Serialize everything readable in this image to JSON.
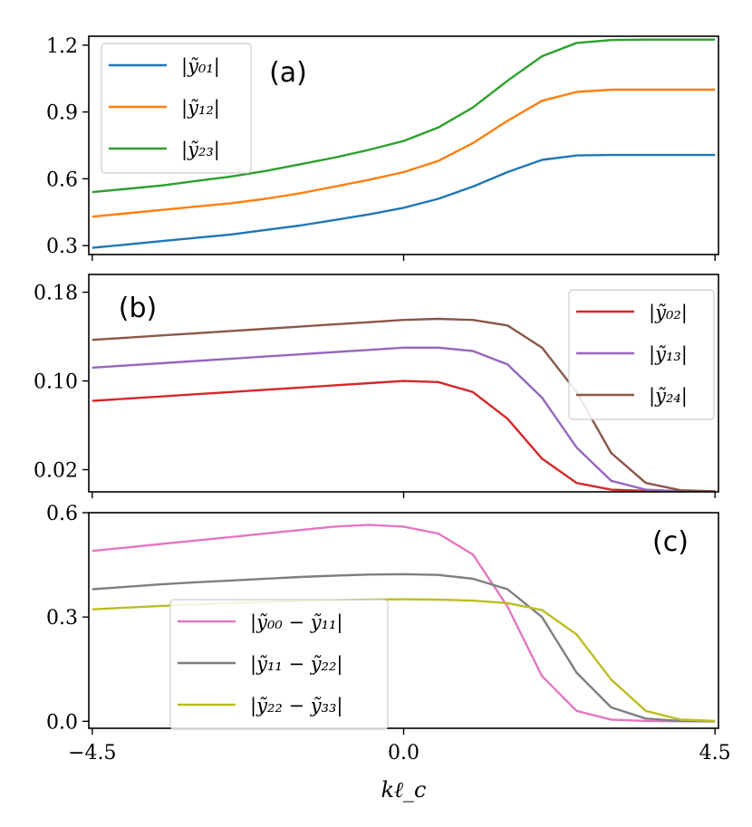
{
  "chart_data": [
    {
      "type": "line",
      "panel_label": "(a)",
      "xlim": [
        -4.55,
        4.55
      ],
      "ylim": [
        0.26,
        1.24
      ],
      "yticks": [
        0.3,
        0.6,
        0.9,
        1.2
      ],
      "ytick_labels": [
        "0.3",
        "0.6",
        "0.9",
        "1.2"
      ],
      "xticks": [
        -4.5,
        0.0,
        4.5
      ],
      "x": [
        -4.5,
        -4.0,
        -3.5,
        -3.0,
        -2.5,
        -2.0,
        -1.5,
        -1.0,
        -0.5,
        0.0,
        0.5,
        1.0,
        1.5,
        2.0,
        2.5,
        3.0,
        3.5,
        4.0,
        4.5
      ],
      "series": [
        {
          "name": "|ỹ₀₁|",
          "color": "#1f77b4",
          "values": [
            0.29,
            0.305,
            0.32,
            0.335,
            0.35,
            0.37,
            0.39,
            0.415,
            0.44,
            0.47,
            0.51,
            0.565,
            0.63,
            0.685,
            0.705,
            0.707,
            0.707,
            0.707,
            0.707
          ]
        },
        {
          "name": "|ỹ₁₂|",
          "color": "#ff7f0e",
          "values": [
            0.43,
            0.445,
            0.46,
            0.475,
            0.49,
            0.51,
            0.535,
            0.565,
            0.595,
            0.63,
            0.68,
            0.76,
            0.86,
            0.95,
            0.99,
            1.0,
            1.0,
            1.0,
            1.0
          ]
        },
        {
          "name": "|ỹ₂₃|",
          "color": "#2ca02c",
          "values": [
            0.54,
            0.555,
            0.57,
            0.59,
            0.61,
            0.635,
            0.665,
            0.695,
            0.73,
            0.77,
            0.83,
            0.92,
            1.04,
            1.15,
            1.21,
            1.223,
            1.225,
            1.225,
            1.225
          ]
        }
      ],
      "legend_position": "upper-left"
    },
    {
      "type": "line",
      "panel_label": "(b)",
      "xlim": [
        -4.55,
        4.55
      ],
      "ylim": [
        0.0,
        0.196
      ],
      "yticks": [
        0.02,
        0.1,
        0.18
      ],
      "ytick_labels": [
        "0.02",
        "0.10",
        "0.18"
      ],
      "xticks": [
        -4.5,
        0.0,
        4.5
      ],
      "x": [
        -4.5,
        -4.0,
        -3.5,
        -3.0,
        -2.5,
        -2.0,
        -1.5,
        -1.0,
        -0.5,
        0.0,
        0.5,
        1.0,
        1.5,
        2.0,
        2.5,
        3.0,
        3.5,
        4.0,
        4.5
      ],
      "series": [
        {
          "name": "|ỹ₀₂|",
          "color": "#d62728",
          "values": [
            0.082,
            0.084,
            0.086,
            0.088,
            0.09,
            0.092,
            0.094,
            0.096,
            0.098,
            0.1,
            0.099,
            0.09,
            0.066,
            0.03,
            0.008,
            0.002,
            0.0008,
            0.0005,
            0.0005
          ]
        },
        {
          "name": "|ỹ₁₃|",
          "color": "#9467bd",
          "values": [
            0.112,
            0.114,
            0.116,
            0.118,
            0.12,
            0.122,
            0.124,
            0.126,
            0.128,
            0.13,
            0.13,
            0.127,
            0.115,
            0.085,
            0.04,
            0.01,
            0.002,
            0.0006,
            0.0005
          ]
        },
        {
          "name": "|ỹ₂₄|",
          "color": "#8c564b",
          "values": [
            0.137,
            0.139,
            0.141,
            0.143,
            0.145,
            0.147,
            0.149,
            0.151,
            0.153,
            0.155,
            0.156,
            0.155,
            0.15,
            0.13,
            0.09,
            0.035,
            0.008,
            0.0015,
            0.0005
          ]
        }
      ],
      "legend_position": "upper-right"
    },
    {
      "type": "line",
      "panel_label": "(c)",
      "xlim": [
        -4.55,
        4.55
      ],
      "ylim": [
        -0.02,
        0.6
      ],
      "yticks": [
        0.0,
        0.3,
        0.6
      ],
      "ytick_labels": [
        "0.0",
        "0.3",
        "0.6"
      ],
      "xticks": [
        -4.5,
        0.0,
        4.5
      ],
      "xtick_labels": [
        "−4.5",
        "0.0",
        "4.5"
      ],
      "xlabel": "kℓ_c",
      "x": [
        -4.5,
        -4.0,
        -3.5,
        -3.0,
        -2.5,
        -2.0,
        -1.5,
        -1.0,
        -0.5,
        0.0,
        0.5,
        1.0,
        1.5,
        2.0,
        2.5,
        3.0,
        3.5,
        4.0,
        4.5
      ],
      "series": [
        {
          "name": "|ỹ₀₀ − ỹ₁₁|",
          "color": "#e377c2",
          "values": [
            0.49,
            0.5,
            0.51,
            0.52,
            0.53,
            0.54,
            0.55,
            0.56,
            0.565,
            0.56,
            0.54,
            0.48,
            0.33,
            0.13,
            0.03,
            0.005,
            0.001,
            0.0,
            0.0
          ]
        },
        {
          "name": "|ỹ₁₁ − ỹ₂₂|",
          "color": "#7f7f7f",
          "values": [
            0.38,
            0.387,
            0.394,
            0.4,
            0.405,
            0.41,
            0.415,
            0.419,
            0.422,
            0.423,
            0.421,
            0.41,
            0.38,
            0.3,
            0.14,
            0.04,
            0.008,
            0.001,
            0.0
          ]
        },
        {
          "name": "|ỹ₂₂ − ỹ₃₃|",
          "color": "#bcbd22",
          "values": [
            0.322,
            0.327,
            0.332,
            0.336,
            0.34,
            0.343,
            0.346,
            0.348,
            0.35,
            0.351,
            0.35,
            0.347,
            0.34,
            0.32,
            0.25,
            0.12,
            0.03,
            0.005,
            0.001
          ]
        }
      ],
      "legend_position": "lower-left"
    }
  ]
}
